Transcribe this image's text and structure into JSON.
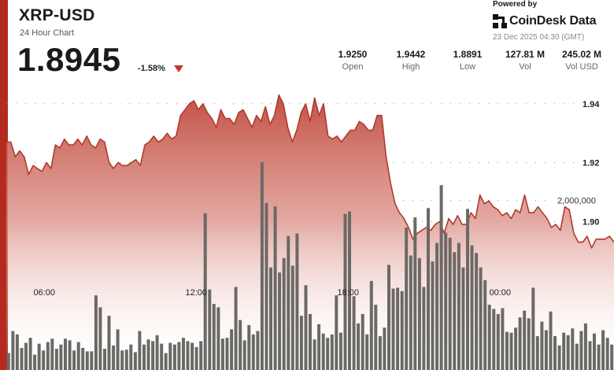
{
  "header": {
    "title": "XRP-USD",
    "subtitle": "24 Hour Chart",
    "price": "1.8945",
    "change": "-1.58%"
  },
  "branding": {
    "powered_by": "Powered by",
    "brand": "CoinDesk Data",
    "timestamp": "23 Dec 2025 04:30 (GMT)"
  },
  "stats": [
    {
      "value": "1.9250",
      "label": "Open"
    },
    {
      "value": "1.9442",
      "label": "High"
    },
    {
      "value": "1.8891",
      "label": "Low"
    },
    {
      "value": "127.81 M",
      "label": "Vol"
    },
    {
      "value": "245.02 M",
      "label": "Vol USD"
    }
  ],
  "colors": {
    "accent_red": "#c0392b",
    "line": "#b03a2e",
    "volume_bar": "#6b6966",
    "left_bar": "#b52a1f"
  },
  "chart_data": {
    "type": "area",
    "y_ticks": [
      "1.94",
      "1.92",
      "1.90"
    ],
    "y_tick_values": [
      1.94,
      1.92,
      1.9
    ],
    "ylim": [
      1.887,
      1.9485
    ],
    "x_ticks": [
      "06:00",
      "12:00",
      "18:00",
      "00:00"
    ],
    "x_tick_hours": [
      6,
      12,
      18,
      24
    ],
    "x_range_hours": [
      4.5,
      28.5
    ],
    "grid": true,
    "price": [
      1.927,
      1.927,
      1.922,
      1.924,
      1.922,
      1.916,
      1.919,
      1.918,
      1.917,
      1.92,
      1.918,
      1.926,
      1.925,
      1.928,
      1.926,
      1.926,
      1.928,
      1.926,
      1.929,
      1.926,
      1.925,
      1.928,
      1.927,
      1.92,
      1.918,
      1.92,
      1.919,
      1.919,
      1.92,
      1.921,
      1.919,
      1.926,
      1.927,
      1.929,
      1.927,
      1.928,
      1.93,
      1.928,
      1.929,
      1.936,
      1.938,
      1.94,
      1.941,
      1.938,
      1.94,
      1.937,
      1.935,
      1.932,
      1.938,
      1.935,
      1.935,
      1.933,
      1.937,
      1.938,
      1.935,
      1.932,
      1.936,
      1.934,
      1.939,
      1.933,
      1.936,
      1.943,
      1.94,
      1.932,
      1.927,
      1.931,
      1.937,
      1.94,
      1.934,
      1.942,
      1.936,
      1.94,
      1.929,
      1.928,
      1.929,
      1.927,
      1.929,
      1.931,
      1.931,
      1.934,
      1.933,
      1.931,
      1.931,
      1.936,
      1.936,
      1.922,
      1.913,
      1.906,
      1.903,
      1.901,
      1.898,
      1.894,
      1.896,
      1.897,
      1.898,
      1.897,
      1.899,
      1.9,
      1.896,
      1.901,
      1.899,
      1.902,
      1.899,
      1.899,
      1.903,
      1.901,
      1.909,
      1.906,
      1.907,
      1.905,
      1.904,
      1.902,
      1.903,
      1.901,
      1.904,
      1.903,
      1.909,
      1.903,
      1.903,
      1.905,
      1.903,
      1.901,
      1.898,
      1.899,
      1.897,
      1.905,
      1.904,
      1.896,
      1.893,
      1.893,
      1.895,
      1.891,
      1.894,
      1.894,
      1.894,
      1.895,
      1.893
    ],
    "volume_label": "2,000,000",
    "volume_label_value": 2000000,
    "volume_ylim": [
      0,
      2600000
    ],
    "volume": [
      200000,
      460000,
      420000,
      260000,
      320000,
      380000,
      180000,
      310000,
      230000,
      330000,
      370000,
      250000,
      300000,
      370000,
      350000,
      230000,
      330000,
      260000,
      220000,
      220000,
      880000,
      740000,
      250000,
      640000,
      290000,
      480000,
      230000,
      240000,
      300000,
      210000,
      460000,
      300000,
      360000,
      340000,
      410000,
      310000,
      200000,
      320000,
      300000,
      330000,
      380000,
      340000,
      320000,
      270000,
      340000,
      1850000,
      950000,
      780000,
      740000,
      370000,
      380000,
      480000,
      980000,
      590000,
      350000,
      530000,
      420000,
      460000,
      2450000,
      1970000,
      1210000,
      1930000,
      1150000,
      1320000,
      1580000,
      1230000,
      1610000,
      640000,
      1000000,
      660000,
      360000,
      540000,
      430000,
      380000,
      420000,
      880000,
      440000,
      1840000,
      1870000,
      870000,
      550000,
      660000,
      420000,
      1050000,
      770000,
      400000,
      500000,
      1240000,
      960000,
      970000,
      930000,
      1680000,
      1350000,
      1800000,
      1320000,
      980000,
      1910000,
      1280000,
      1500000,
      2180000,
      1620000,
      1560000,
      1390000,
      1500000,
      1210000,
      1900000,
      1470000,
      1380000,
      1210000,
      1060000,
      770000,
      720000,
      660000,
      730000,
      450000,
      440000,
      500000,
      620000,
      700000,
      610000,
      970000,
      400000,
      570000,
      470000,
      690000,
      400000,
      290000,
      440000,
      410000,
      490000,
      310000,
      460000,
      550000,
      340000,
      430000,
      300000,
      470000,
      380000,
      300000
    ]
  }
}
